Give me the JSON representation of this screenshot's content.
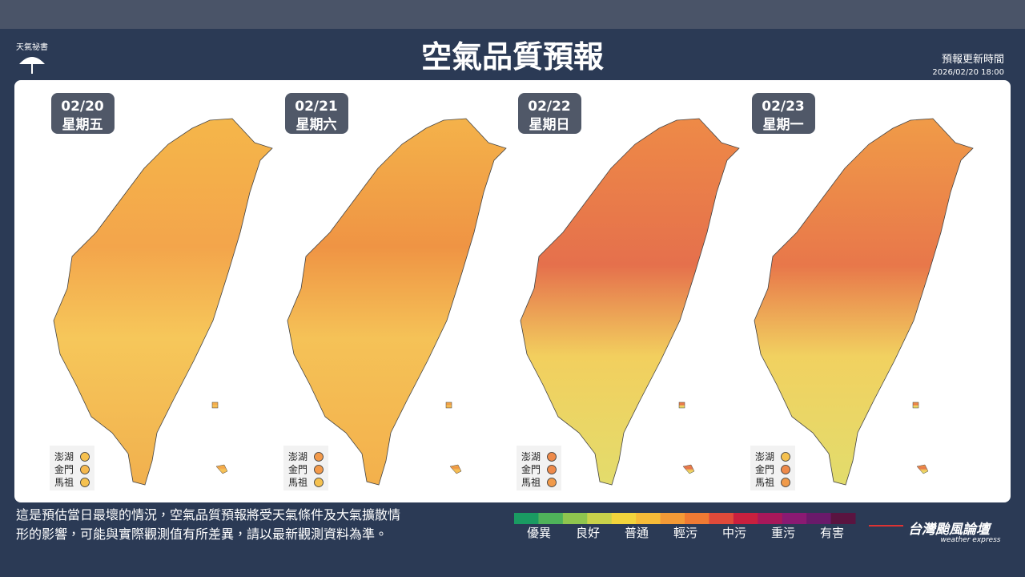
{
  "header": {
    "logo": "天氣祕書",
    "title": "空氣品質預報",
    "update_label": "預報更新時間",
    "update_time": "2026/02/20 18:00"
  },
  "panels": [
    {
      "date": "02/20",
      "weekday": "星期五",
      "islands": [
        "澎湖",
        "金門",
        "馬祖"
      ]
    },
    {
      "date": "02/21",
      "weekday": "星期六",
      "islands": [
        "澎湖",
        "金門",
        "馬祖"
      ]
    },
    {
      "date": "02/22",
      "weekday": "星期日",
      "islands": [
        "澎湖",
        "金門",
        "馬祖"
      ]
    },
    {
      "date": "02/23",
      "weekday": "星期一",
      "islands": [
        "澎湖",
        "金門",
        "馬祖"
      ]
    }
  ],
  "footer": {
    "note": [
      "這是預估當日最壞的情況，空氣品質預報將受天氣條件及大氣擴散情",
      "形的影響，可能與實際觀測值有所差異，請以最新觀測資料為準。"
    ],
    "legend": [
      "優異",
      "良好",
      "普通",
      "輕污",
      "中污",
      "重污",
      "有害"
    ],
    "brand": "台灣颱風論壇",
    "brand_sub": "weather express"
  }
}
